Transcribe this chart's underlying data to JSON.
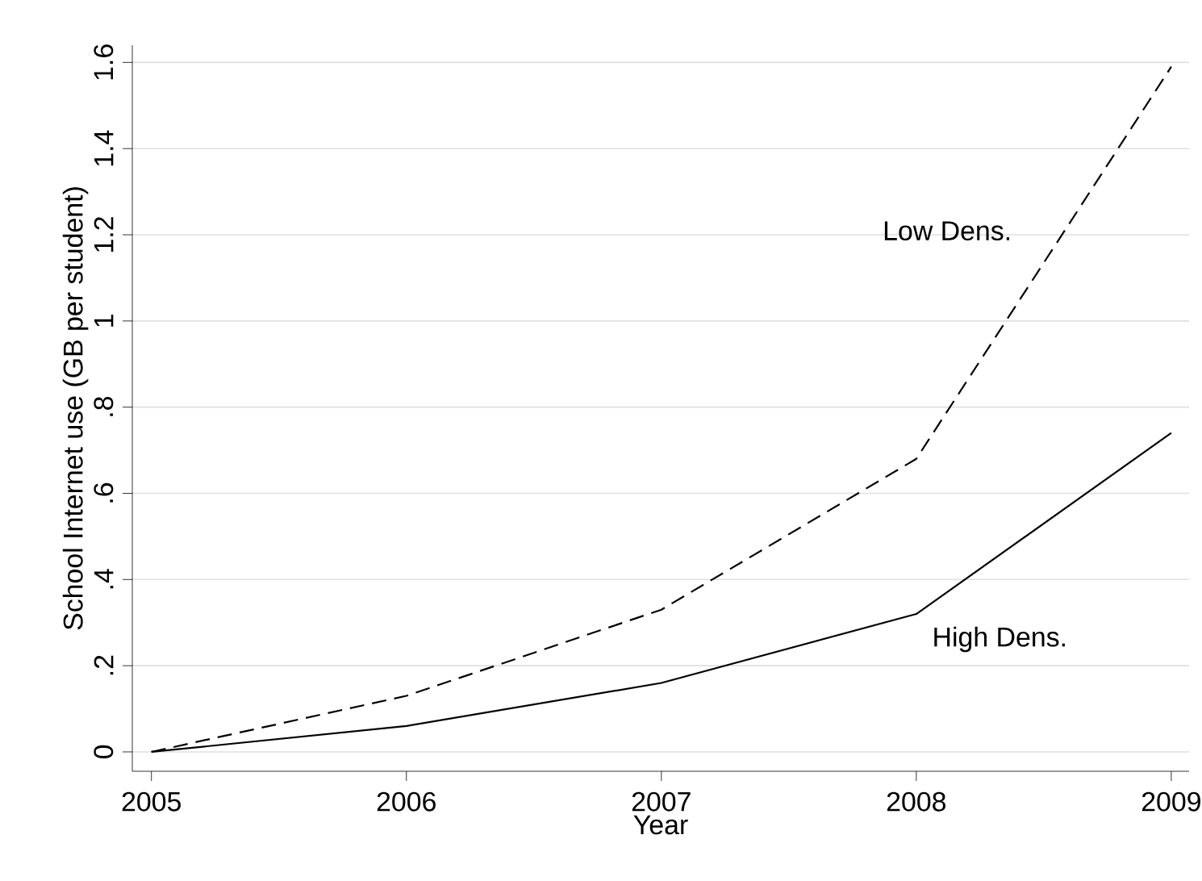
{
  "chart_data": {
    "type": "line",
    "xlabel": "Year",
    "ylabel": "School Internet use (GB per student)",
    "x": [
      2005,
      2006,
      2007,
      2008,
      2009
    ],
    "series": [
      {
        "name": "Low Dens.",
        "color": "#000000",
        "line_style": "dashed",
        "values": [
          0,
          0.13,
          0.33,
          0.68,
          1.59
        ]
      },
      {
        "name": "High Dens.",
        "color": "#000000",
        "line_style": "solid",
        "values": [
          0,
          0.06,
          0.16,
          0.32,
          0.74
        ]
      }
    ],
    "xlim": [
      2004.925,
      2009.07
    ],
    "ylim": [
      -0.045,
      1.64
    ],
    "xticks": [
      2005,
      2006,
      2007,
      2008,
      2009
    ],
    "yticks": [
      0,
      {
        "value": 0.2,
        "label": ".2"
      },
      {
        "value": 0.4,
        "label": ".4"
      },
      {
        "value": 0.6,
        "label": ".6"
      },
      {
        "value": 0.8,
        "label": ".8"
      },
      1,
      {
        "value": 1.2,
        "label": "1.2"
      },
      {
        "value": 1.4,
        "label": "1.4"
      },
      {
        "value": 1.6,
        "label": "1.6"
      }
    ],
    "grid": "y"
  }
}
